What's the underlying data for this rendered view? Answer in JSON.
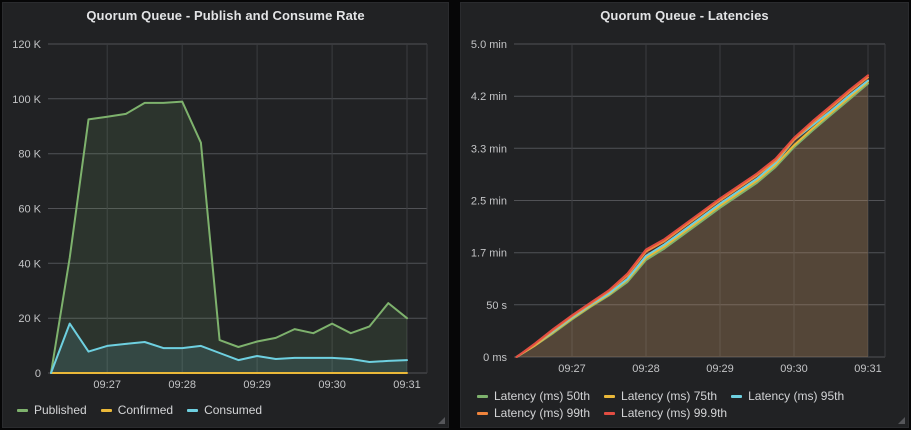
{
  "chart_data": [
    {
      "type": "area",
      "title": "Quorum Queue - Publish and Consume Rate",
      "x": [
        "09:26:15",
        "09:26:30",
        "09:26:45",
        "09:27:00",
        "09:27:15",
        "09:27:30",
        "09:27:45",
        "09:28:00",
        "09:28:15",
        "09:28:30",
        "09:28:45",
        "09:29:00",
        "09:29:15",
        "09:29:30",
        "09:29:45",
        "09:30:00",
        "09:30:15",
        "09:30:30",
        "09:30:45",
        "09:31:00"
      ],
      "x_ticks": {
        "labels": [
          "09:27",
          "09:28",
          "09:29",
          "09:30",
          "09:31"
        ],
        "indices": [
          3,
          7,
          11,
          15,
          19
        ]
      },
      "y_ticks": [
        "120 K",
        "100 K",
        "80 K",
        "60 K",
        "40 K",
        "20 K",
        "0"
      ],
      "ylim": [
        0,
        120
      ],
      "value_unit": "K msg/s",
      "grid": true,
      "legend_position": "bottom-left",
      "series": [
        {
          "name": "Published",
          "color": "#7EB26D",
          "fill": "rgba(126,178,109,0.13)",
          "values": [
            0,
            42,
            92.5,
            93.5,
            94.5,
            98.5,
            98.5,
            99,
            84,
            12,
            9.5,
            11.5,
            12.8,
            16,
            14.5,
            18,
            14.5,
            17,
            25.5,
            20
          ]
        },
        {
          "name": "Confirmed",
          "color": "#EAB839",
          "fill": null,
          "values": [
            0,
            0,
            0,
            0,
            0,
            0,
            0,
            0,
            0,
            0,
            0,
            0,
            0,
            0,
            0,
            0,
            0,
            0,
            0,
            0
          ]
        },
        {
          "name": "Consumed",
          "color": "#6ED0E0",
          "fill": "rgba(110,208,224,0.13)",
          "values": [
            0,
            18,
            7.8,
            9.9,
            10.6,
            11.3,
            9.1,
            9.1,
            9.9,
            7.3,
            4.7,
            6.2,
            5.1,
            5.5,
            5.5,
            5.5,
            5.1,
            4,
            4.4,
            4.7
          ]
        }
      ]
    },
    {
      "type": "area",
      "title": "Quorum Queue - Latencies",
      "x": [
        "09:26:15",
        "09:26:30",
        "09:26:45",
        "09:27:00",
        "09:27:15",
        "09:27:30",
        "09:27:45",
        "09:28:00",
        "09:28:15",
        "09:28:30",
        "09:28:45",
        "09:29:00",
        "09:29:15",
        "09:29:30",
        "09:29:45",
        "09:30:00",
        "09:30:15",
        "09:30:30",
        "09:30:45",
        "09:31:00"
      ],
      "x_ticks": {
        "labels": [
          "09:27",
          "09:28",
          "09:29",
          "09:30",
          "09:31"
        ],
        "indices": [
          3,
          7,
          11,
          15,
          19
        ]
      },
      "y_ticks": [
        "5.0 min",
        "4.2 min",
        "3.3 min",
        "2.5 min",
        "1.7 min",
        "50 s",
        "0 ms"
      ],
      "ylim": [
        0,
        300
      ],
      "value_unit": "seconds",
      "grid": true,
      "legend_position": "bottom-left",
      "series": [
        {
          "name": "Latency (ms) 50th",
          "color": "#7EB26D",
          "fill": "rgba(126,178,109,0.08)",
          "values": [
            0,
            11,
            23,
            36,
            48,
            59,
            72,
            93,
            104,
            117,
            130,
            143,
            155,
            167,
            182,
            201,
            217,
            232,
            247,
            262
          ]
        },
        {
          "name": "Latency (ms) 75th",
          "color": "#EAB839",
          "fill": "rgba(234,184,57,0.08)",
          "values": [
            0,
            11,
            24,
            37,
            49,
            60,
            74,
            95,
            106,
            119,
            132,
            145,
            157,
            169,
            184,
            203,
            219,
            234,
            249,
            264
          ]
        },
        {
          "name": "Latency (ms) 95th",
          "color": "#6ED0E0",
          "fill": "rgba(110,208,224,0.08)",
          "values": [
            0,
            12,
            25,
            38,
            50,
            61,
            75,
            97,
            108,
            121,
            134,
            147,
            159,
            171,
            186,
            208,
            222,
            236,
            251,
            265
          ]
        },
        {
          "name": "Latency (ms) 99th",
          "color": "#EF843C",
          "fill": "rgba(239,132,60,0.08)",
          "values": [
            0,
            12,
            26,
            39,
            51,
            63,
            78,
            101,
            111,
            124,
            137,
            150,
            162,
            174,
            188,
            208,
            224,
            239,
            254,
            268
          ]
        },
        {
          "name": "Latency (ms) 99.9th",
          "color": "#E24D42",
          "fill": "rgba(226,77,66,0.08)",
          "values": [
            0,
            13,
            27,
            40,
            52,
            64,
            80,
            103,
            113,
            126,
            139,
            152,
            164,
            176,
            190,
            210,
            226,
            241,
            256,
            270
          ]
        }
      ]
    }
  ]
}
